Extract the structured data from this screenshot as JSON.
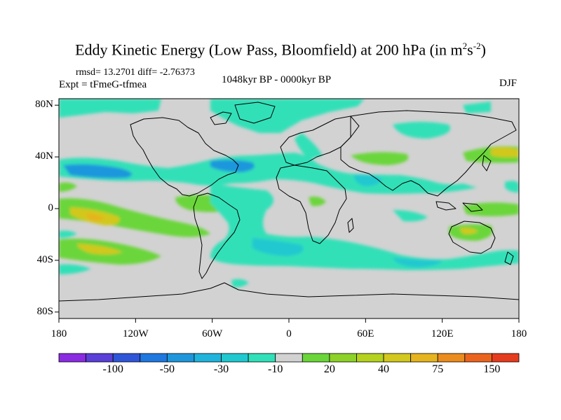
{
  "title": {
    "main": "Eddy Kinetic Energy (Low Pass, Bloomfield) at 200 hPa (in m",
    "sup1": "2",
    "mid": "s",
    "sup2": "-2",
    "end": ")"
  },
  "stats": "rmsd= 13.2701 diff= -2.76373",
  "experiment": "Expt = tFmeG-tfmea",
  "period": "1048kyr BP - 0000kyr BP",
  "season": "DJF",
  "lat_ticks": [
    {
      "label": "80N",
      "lat": 80
    },
    {
      "label": "40N",
      "lat": 40
    },
    {
      "label": "0",
      "lat": 0
    },
    {
      "label": "40S",
      "lat": -40
    },
    {
      "label": "80S",
      "lat": -80
    }
  ],
  "lon_ticks": [
    {
      "label": "180",
      "lon": -180
    },
    {
      "label": "120W",
      "lon": -120
    },
    {
      "label": "60W",
      "lon": -60
    },
    {
      "label": "0",
      "lon": 0
    },
    {
      "label": "60E",
      "lon": 60
    },
    {
      "label": "120E",
      "lon": 120
    },
    {
      "label": "180",
      "lon": 180
    }
  ],
  "colorbar": {
    "colors": [
      "#8a2be2",
      "#5a3fd8",
      "#2f56d8",
      "#1e78e0",
      "#1e96dc",
      "#20b4dc",
      "#20c8d0",
      "#30e0b8",
      "#d2d2d2",
      "#6ad63a",
      "#8cd228",
      "#b4d21e",
      "#d2c81e",
      "#e6b41e",
      "#eb8c1e",
      "#eb641e",
      "#e63c1e"
    ],
    "labels": [
      {
        "label": "-100",
        "after_index": 1
      },
      {
        "label": "-50",
        "after_index": 3
      },
      {
        "label": "-30",
        "after_index": 5
      },
      {
        "label": "-10",
        "after_index": 7
      },
      {
        "label": "20",
        "after_index": 9
      },
      {
        "label": "40",
        "after_index": 11
      },
      {
        "label": "75",
        "after_index": 13
      },
      {
        "label": "150",
        "after_index": 15
      }
    ]
  },
  "colors": {
    "background_gray": "#d2d2d2",
    "teal": "#30e0b8",
    "cyan": "#20c8d0",
    "blue": "#1e96dc",
    "green": "#6ad63a",
    "yellow": "#d2c81e",
    "orange": "#eb8c1e"
  }
}
